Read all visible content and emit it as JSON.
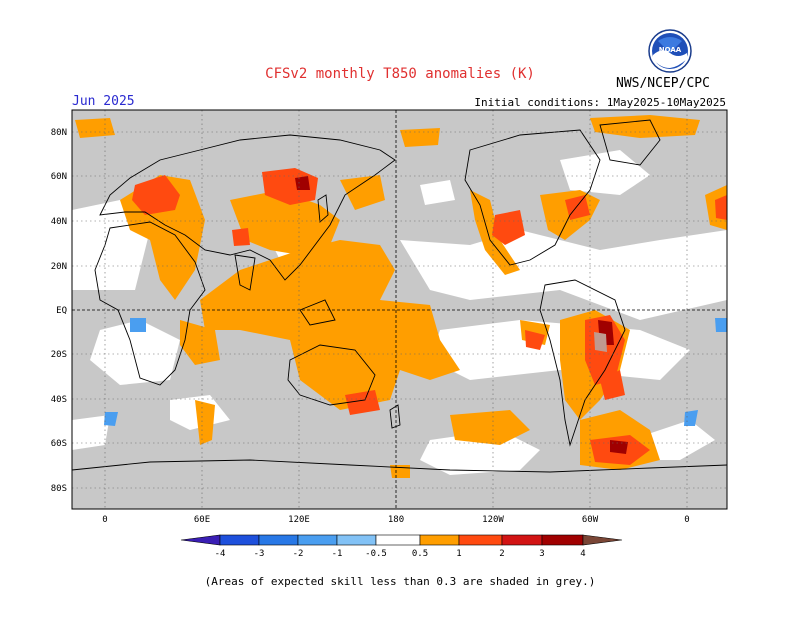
{
  "header": {
    "title": "CFSv2 monthly T850 anomalies (K)",
    "month": "Jun 2025",
    "initial_conditions": "Initial conditions: 1May2025-10May2025",
    "agency": "NWS/NCEP/CPC",
    "logo_text": "NOAA"
  },
  "map": {
    "lat_labels": [
      "80N",
      "60N",
      "40N",
      "20N",
      "EQ",
      "20S",
      "40S",
      "60S",
      "80S"
    ],
    "lon_labels": [
      "0",
      "60E",
      "120E",
      "180",
      "120W",
      "60W",
      "0"
    ],
    "skill_mask_color": "#c8c8c8"
  },
  "legend": {
    "tick_labels": [
      "-4",
      "-3",
      "-2",
      "-1",
      "-0.5",
      "0.5",
      "1",
      "2",
      "3",
      "4"
    ],
    "colors": [
      "#3a1eb4",
      "#1e50dc",
      "#2878e6",
      "#4a9ef0",
      "#82c2f6",
      "#ffffff",
      "#ff9e00",
      "#ff4a10",
      "#d21414",
      "#a00000",
      "#c09a90",
      "#7a4636"
    ],
    "unit": "K"
  },
  "footnote": "(Areas of expected skill less than 0.3 are shaded in grey.)"
}
